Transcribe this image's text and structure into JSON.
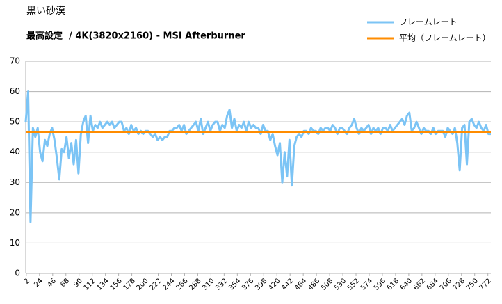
{
  "chart_data": {
    "type": "line",
    "title": "黒い砂漠",
    "subtitle": "最高設定  / 4K(3820x2160) - MSI Afterburner",
    "x": [
      1,
      5,
      9,
      13,
      17,
      21,
      25,
      29,
      33,
      37,
      41,
      45,
      49,
      53,
      57,
      61,
      65,
      69,
      73,
      77,
      81,
      85,
      89,
      93,
      97,
      101,
      105,
      109,
      113,
      117,
      121,
      125,
      129,
      133,
      137,
      141,
      145,
      149,
      153,
      157,
      161,
      165,
      169,
      173,
      177,
      181,
      185,
      189,
      193,
      197,
      201,
      205,
      209,
      213,
      217,
      221,
      225,
      229,
      233,
      237,
      241,
      245,
      249,
      253,
      257,
      261,
      265,
      269,
      273,
      277,
      281,
      285,
      289,
      293,
      297,
      301,
      305,
      309,
      313,
      317,
      321,
      325,
      329,
      333,
      337,
      341,
      345,
      349,
      353,
      357,
      361,
      365,
      369,
      373,
      377,
      381,
      385,
      389,
      393,
      397,
      401,
      405,
      409,
      413,
      417,
      421,
      425,
      429,
      433,
      437,
      441,
      445,
      449,
      453,
      457,
      461,
      465,
      469,
      473,
      477,
      481,
      485,
      489,
      493,
      497,
      501,
      505,
      509,
      513,
      517,
      521,
      525,
      529,
      533,
      537,
      541,
      545,
      549,
      553,
      557,
      561,
      565,
      569,
      573,
      577,
      581,
      585,
      589,
      593,
      597,
      601,
      605,
      609,
      613,
      617,
      621,
      625,
      629,
      633,
      637,
      641,
      645,
      649,
      653,
      657,
      661,
      665,
      669,
      673,
      677,
      681,
      685,
      689,
      693,
      697,
      701,
      705,
      709,
      713,
      717,
      721,
      725,
      729,
      733,
      737,
      741,
      745,
      749,
      753,
      757,
      761,
      765,
      769,
      773,
      777
    ],
    "series": [
      {
        "name": "フレームレート",
        "color": "#7cc4f5",
        "values": [
          50,
          60,
          17,
          48,
          45,
          48,
          40,
          37,
          44,
          42,
          46,
          48,
          44,
          38,
          31,
          41,
          40,
          45,
          38,
          43,
          36,
          44,
          33,
          46,
          50,
          52,
          43,
          52,
          47,
          49,
          48,
          50,
          48,
          49,
          50,
          49,
          50,
          48,
          49,
          50,
          50,
          47,
          48,
          46,
          49,
          47,
          48,
          46,
          47,
          46,
          47,
          47,
          46,
          45,
          46,
          44,
          45,
          44,
          45,
          45,
          47,
          47,
          48,
          48,
          49,
          47,
          49,
          46,
          47,
          48,
          49,
          50,
          47,
          51,
          46,
          48,
          50,
          47,
          49,
          50,
          50,
          47,
          49,
          48,
          52,
          54,
          48,
          51,
          47,
          49,
          48,
          50,
          47,
          50,
          48,
          49,
          48,
          48,
          46,
          49,
          47,
          47,
          44,
          46,
          42,
          39,
          43,
          30,
          40,
          32,
          44,
          29,
          42,
          45,
          46,
          45,
          47,
          47,
          46,
          48,
          47,
          47,
          46,
          48,
          47,
          48,
          48,
          47,
          49,
          48,
          46,
          48,
          48,
          47,
          46,
          48,
          49,
          51,
          48,
          46,
          48,
          47,
          48,
          49,
          46,
          48,
          47,
          48,
          46,
          48,
          48,
          47,
          49,
          47,
          48,
          49,
          50,
          51,
          49,
          52,
          53,
          47,
          48,
          50,
          48,
          46,
          48,
          47,
          47,
          46,
          48,
          46,
          47,
          47,
          47,
          45,
          48,
          47,
          46,
          48,
          43,
          34,
          48,
          49,
          36,
          50,
          51,
          49,
          48,
          50,
          48,
          47,
          49,
          46,
          46
        ]
      }
    ],
    "reference_lines": [
      {
        "name": "平均（フレームレート）",
        "color": "#ff8c00",
        "value": 46.7
      }
    ],
    "xlim": [
      1,
      777
    ],
    "xticks": [
      2,
      24,
      46,
      68,
      90,
      112,
      134,
      156,
      178,
      200,
      222,
      244,
      266,
      288,
      310,
      332,
      354,
      376,
      398,
      420,
      442,
      464,
      486,
      508,
      530,
      552,
      574,
      596,
      618,
      640,
      662,
      684,
      706,
      728,
      750,
      772
    ],
    "ylim": [
      0,
      70
    ],
    "yticks": [
      0,
      10,
      20,
      30,
      40,
      50,
      60,
      70
    ],
    "grid": true
  }
}
